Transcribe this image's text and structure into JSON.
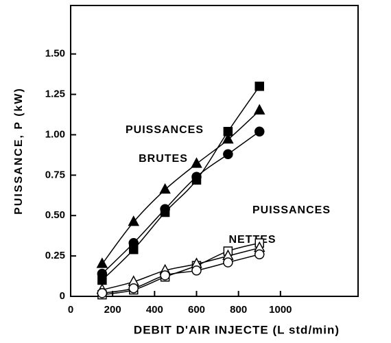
{
  "chart_data": {
    "type": "line",
    "x_label": "DEBIT   D'AIR   INJECTE   (L std/min)",
    "y_label": "PUISSANCE, P  (kW)",
    "annotations": [
      "PUISSANCES",
      "BRUTES",
      "PUISSANCES",
      "NETTES"
    ],
    "x": [
      150,
      300,
      450,
      600,
      750,
      900
    ],
    "series": [
      {
        "marker": "square",
        "filled": true,
        "color": "#000000",
        "values": [
          0.1,
          0.29,
          0.52,
          0.72,
          1.02,
          1.3
        ]
      },
      {
        "marker": "triangle",
        "filled": true,
        "color": "#000000",
        "values": [
          0.2,
          0.46,
          0.66,
          0.82,
          0.97,
          1.15
        ]
      },
      {
        "marker": "circle",
        "filled": true,
        "color": "#000000",
        "values": [
          0.14,
          0.33,
          0.54,
          0.74,
          0.88,
          1.02
        ]
      },
      {
        "marker": "square",
        "filled": false,
        "color": "#000000",
        "values": [
          0.01,
          0.04,
          0.12,
          0.19,
          0.28,
          0.33
        ]
      },
      {
        "marker": "triangle",
        "filled": false,
        "color": "#000000",
        "values": [
          0.04,
          0.09,
          0.16,
          0.2,
          0.25,
          0.3
        ]
      },
      {
        "marker": "circle",
        "filled": false,
        "color": "#000000",
        "values": [
          0.02,
          0.05,
          0.13,
          0.16,
          0.21,
          0.26
        ]
      }
    ],
    "xlim": [
      0,
      1370
    ],
    "xticks": [
      0,
      200,
      400,
      600,
      800,
      1000
    ],
    "ylim": [
      0,
      1.8
    ],
    "yticks": [
      0,
      0.25,
      {
        "value": 0.5,
        "label": "0.50"
      },
      0.75,
      {
        "value": 1,
        "label": "1.00"
      },
      1.25,
      {
        "value": 1.5,
        "label": "1.50"
      }
    ]
  }
}
